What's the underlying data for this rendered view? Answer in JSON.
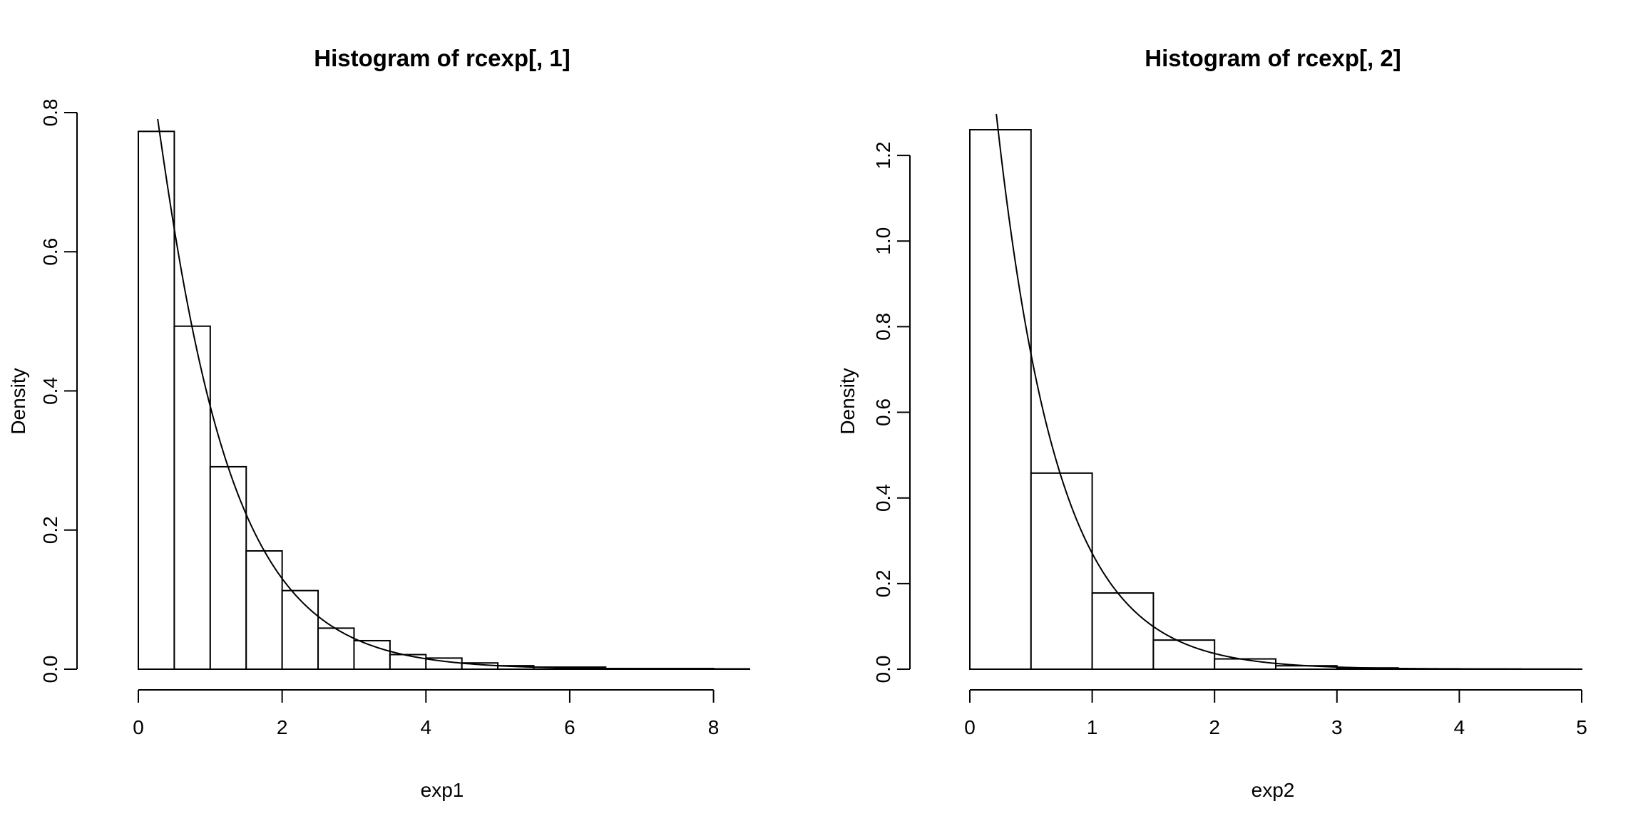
{
  "chart_data": [
    {
      "type": "bar",
      "title": "Histogram of rcexp[, 1]",
      "xlabel": "exp1",
      "ylabel": "Density",
      "xlim": [
        0,
        8.5
      ],
      "ylim": [
        0,
        0.8
      ],
      "x_ticks": [
        0,
        2,
        4,
        6,
        8
      ],
      "x_tick_labels": [
        "0",
        "2",
        "4",
        "6",
        "8"
      ],
      "y_ticks": [
        0,
        0.2,
        0.4,
        0.6,
        0.8
      ],
      "y_tick_labels": [
        "0.0",
        "0.2",
        "0.4",
        "0.6",
        "0.8"
      ],
      "bin_edges": [
        0,
        0.5,
        1,
        1.5,
        2,
        2.5,
        3,
        3.5,
        4,
        4.5,
        5,
        5.5,
        6,
        6.5,
        7,
        7.5,
        8,
        8.5
      ],
      "values": [
        0.773,
        0.493,
        0.291,
        0.17,
        0.113,
        0.059,
        0.041,
        0.021,
        0.016,
        0.009,
        0.005,
        0.003,
        0.003,
        0.001,
        0.001,
        0.001,
        0.0005
      ],
      "curve": {
        "type": "density",
        "formula": "Gamma(shape=1.05, rate=1.1)"
      },
      "grid": false
    },
    {
      "type": "bar",
      "title": "Histogram of rcexp[, 2]",
      "xlabel": "exp2",
      "ylabel": "Density",
      "xlim": [
        0,
        5
      ],
      "ylim": [
        0,
        1.3
      ],
      "x_ticks": [
        0,
        1,
        2,
        3,
        4,
        5
      ],
      "x_tick_labels": [
        "0",
        "1",
        "2",
        "3",
        "4",
        "5"
      ],
      "y_ticks": [
        0,
        0.2,
        0.4,
        0.6,
        0.8,
        1.0,
        1.2
      ],
      "y_tick_labels": [
        "0.0",
        "0.2",
        "0.4",
        "0.6",
        "0.8",
        "1.0",
        "1.2"
      ],
      "bin_edges": [
        0,
        0.5,
        1,
        1.5,
        2,
        2.5,
        3,
        3.5,
        4,
        4.5,
        5
      ],
      "values": [
        1.26,
        0.458,
        0.178,
        0.068,
        0.024,
        0.008,
        0.003,
        0.001,
        0.0005,
        0.0002
      ],
      "curve": {
        "type": "density",
        "formula": "Exponential(rate=2)"
      },
      "grid": false
    }
  ]
}
